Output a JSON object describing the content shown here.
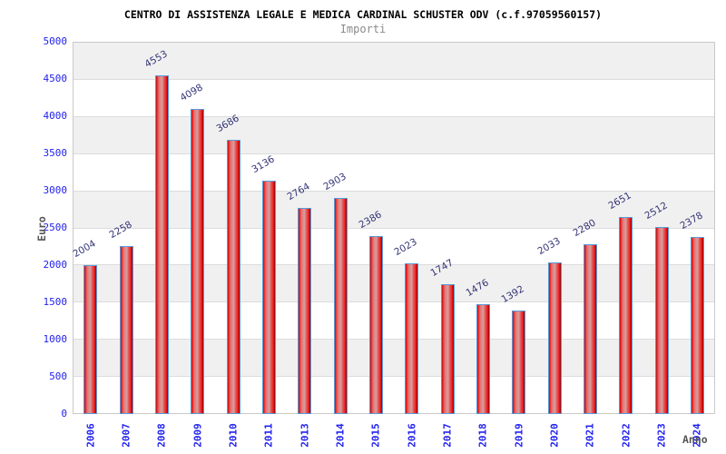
{
  "chart_data": {
    "type": "bar",
    "title": "CENTRO DI ASSISTENZA LEGALE E MEDICA CARDINAL SCHUSTER ODV (c.f.97059560157)",
    "subtitle": "Importi",
    "xlabel": "Anno",
    "ylabel": "Euro",
    "categories": [
      "2006",
      "2007",
      "2008",
      "2009",
      "2010",
      "2011",
      "2013",
      "2014",
      "2015",
      "2016",
      "2017",
      "2018",
      "2019",
      "2020",
      "2021",
      "2022",
      "2023",
      "2024"
    ],
    "values": [
      2004,
      2258,
      4553,
      4098,
      3686,
      3136,
      2764,
      2903,
      2386,
      2023,
      1747,
      1476,
      1392,
      2033,
      2280,
      2651,
      2512,
      2378
    ],
    "ylim": [
      0,
      5000
    ],
    "ytick_step": 500,
    "yticks": [
      "0",
      "500",
      "1000",
      "1500",
      "2000",
      "2500",
      "3000",
      "3500",
      "4000",
      "4500",
      "5000"
    ],
    "legend_position": "none",
    "grid": "alternating horizontal bands, gridline every 500",
    "colors": {
      "bar_fill_main": "#e02020",
      "bar_fill_center": "#d89494",
      "bar_fill_edge": "#8e0404",
      "bar_border": "#5b9ad8",
      "tick_label": "#2222ee",
      "value_label": "#333377",
      "axis_title": "#555555",
      "band_gray": "#f0f0f0",
      "band_white": "#ffffff",
      "grid_line": "#dcdcdc",
      "plot_border": "#c9c9c9",
      "title_color": "#000000",
      "subtitle_color": "#8a8a8a"
    }
  }
}
